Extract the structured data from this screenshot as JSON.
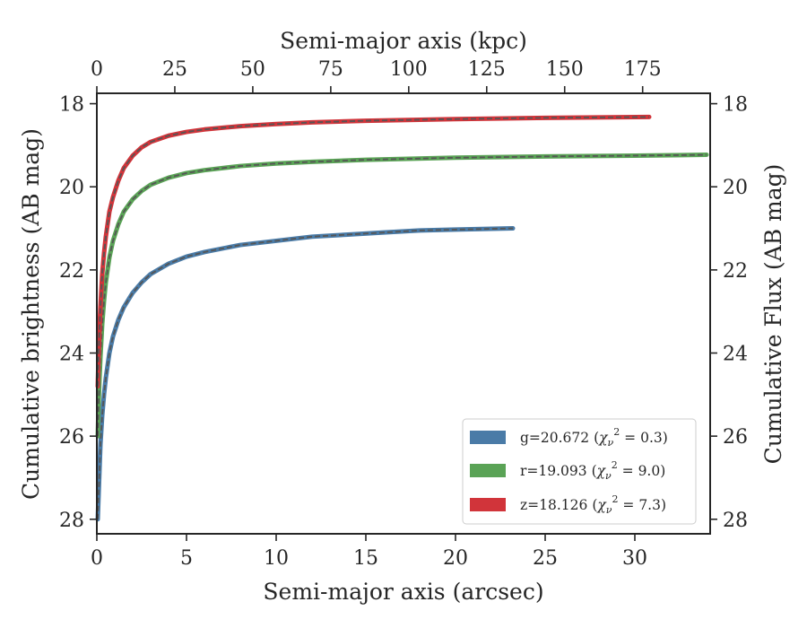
{
  "chart_data": {
    "type": "line",
    "xlabel": "Semi-major axis (arcsec)",
    "ylabel": "Cumulative brightness (AB mag)",
    "x2label": "Semi-major axis (kpc)",
    "y2label": "Cumulative Flux (AB mag)",
    "xlim": [
      0,
      34.2
    ],
    "ylim": [
      28.35,
      17.75
    ],
    "y_inverted": true,
    "x_ticks": [
      0,
      5,
      10,
      15,
      20,
      25,
      30
    ],
    "y_ticks": [
      18,
      20,
      22,
      24,
      26,
      28
    ],
    "x2_ticks": [
      0,
      25,
      50,
      75,
      100,
      125,
      150,
      175
    ],
    "kpc_per_arcsec": 5.75,
    "grid": false,
    "legend_position": "lower-right",
    "colors": {
      "g": "#4a7ba7",
      "r": "#5aa356",
      "z": "#d1343a",
      "model": "#555555",
      "axes": "#262626"
    },
    "series": [
      {
        "name": "g",
        "legend": {
          "prefix": "g=20.672",
          "chi2": "0.3"
        },
        "x": [
          0.05,
          0.1,
          0.15,
          0.2,
          0.3,
          0.4,
          0.5,
          0.7,
          0.9,
          1.2,
          1.5,
          2,
          2.5,
          3,
          4,
          5,
          6,
          8,
          10,
          12,
          14,
          16,
          18,
          20,
          23.2
        ],
        "y": [
          28.0,
          27.4,
          26.8,
          26.2,
          25.5,
          25.0,
          24.6,
          24.0,
          23.6,
          23.2,
          22.9,
          22.55,
          22.3,
          22.1,
          21.85,
          21.68,
          21.57,
          21.4,
          21.3,
          21.2,
          21.15,
          21.1,
          21.05,
          21.03,
          21.0
        ]
      },
      {
        "name": "r",
        "legend": {
          "prefix": "r=19.093",
          "chi2": "9.0"
        },
        "x": [
          0.05,
          0.1,
          0.15,
          0.2,
          0.3,
          0.4,
          0.5,
          0.7,
          0.9,
          1.2,
          1.5,
          2,
          2.5,
          3,
          4,
          5,
          6,
          8,
          10,
          12,
          15,
          20,
          25,
          30,
          34
        ],
        "y": [
          26.0,
          25.2,
          24.6,
          24.1,
          23.3,
          22.75,
          22.3,
          21.7,
          21.3,
          20.9,
          20.6,
          20.3,
          20.1,
          19.95,
          19.78,
          19.67,
          19.6,
          19.5,
          19.44,
          19.4,
          19.35,
          19.3,
          19.27,
          19.25,
          19.23
        ]
      },
      {
        "name": "z",
        "legend": {
          "prefix": "z=18.126",
          "chi2": "7.3"
        },
        "x": [
          0.05,
          0.1,
          0.15,
          0.2,
          0.3,
          0.4,
          0.5,
          0.7,
          0.9,
          1.2,
          1.5,
          2,
          2.5,
          3,
          4,
          5,
          6,
          8,
          10,
          12,
          15,
          20,
          25,
          30.8
        ],
        "y": [
          24.8,
          24.0,
          23.4,
          22.9,
          22.1,
          21.6,
          21.2,
          20.6,
          20.25,
          19.85,
          19.55,
          19.25,
          19.05,
          18.92,
          18.77,
          18.68,
          18.62,
          18.54,
          18.49,
          18.45,
          18.41,
          18.37,
          18.34,
          18.32
        ]
      }
    ]
  }
}
